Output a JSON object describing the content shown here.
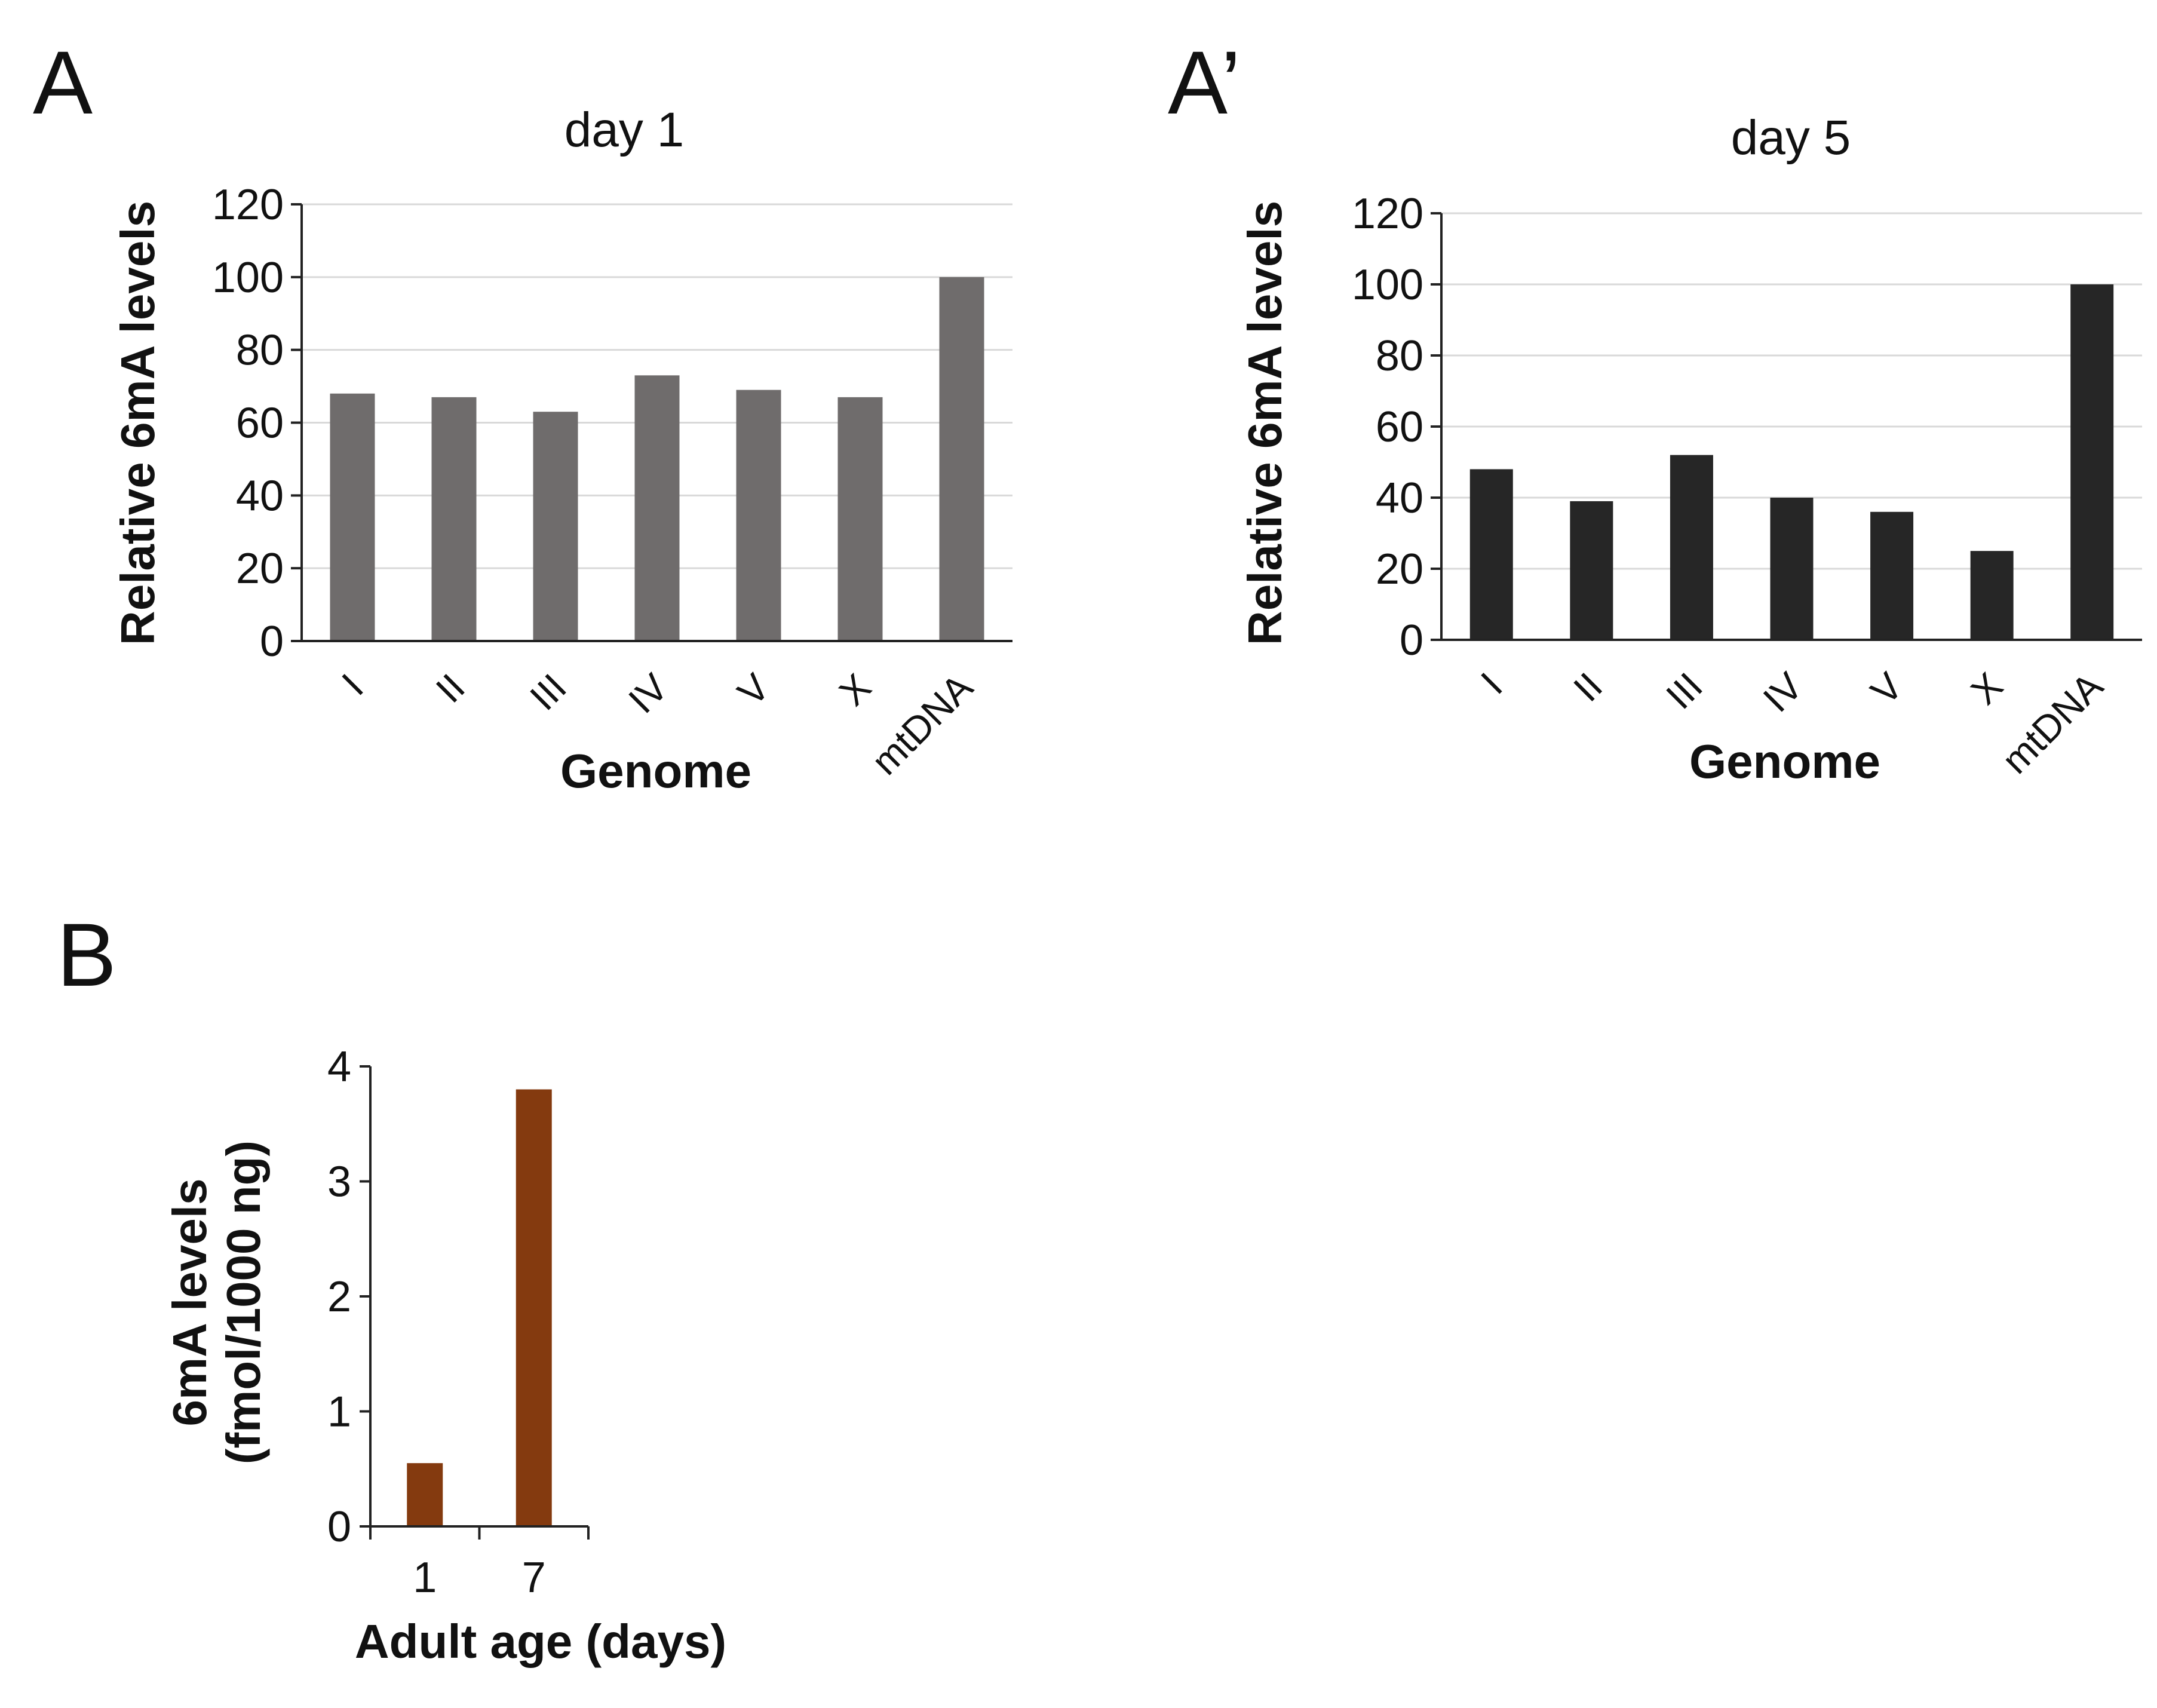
{
  "figure": {
    "panel_labels": {
      "a": "A",
      "a_prime": "A’",
      "b": "B"
    }
  },
  "chart_data": [
    {
      "id": "A",
      "type": "bar",
      "title": "day 1",
      "xlabel": "Genome",
      "ylabel": "Relative 6mA levels",
      "categories": [
        "I",
        "II",
        "III",
        "IV",
        "V",
        "X",
        "mtDNA"
      ],
      "values": [
        68,
        67,
        63,
        73,
        69,
        67,
        100
      ],
      "ylim": [
        0,
        120
      ],
      "yticks": [
        0,
        20,
        40,
        60,
        80,
        100,
        120
      ],
      "grid": true,
      "color": "#6f6c6c"
    },
    {
      "id": "A_prime",
      "type": "bar",
      "title": "day 5",
      "xlabel": "Genome",
      "ylabel": "Relative 6mA levels",
      "categories": [
        "I",
        "II",
        "III",
        "IV",
        "V",
        "X",
        "mtDNA"
      ],
      "values": [
        48,
        39,
        52,
        40,
        36,
        25,
        100
      ],
      "ylim": [
        0,
        120
      ],
      "yticks": [
        0,
        20,
        40,
        60,
        80,
        100,
        120
      ],
      "grid": true,
      "color": "#262626"
    },
    {
      "id": "B",
      "type": "bar",
      "title": "",
      "xlabel": "Adult age (days)",
      "ylabel": [
        "6mA levels",
        "(fmol/1000 ng)"
      ],
      "categories": [
        "1",
        "7"
      ],
      "values": [
        0.55,
        3.8
      ],
      "ylim": [
        0,
        4
      ],
      "yticks": [
        0,
        1,
        2,
        3,
        4
      ],
      "grid": false,
      "color": "#843a0f"
    }
  ]
}
